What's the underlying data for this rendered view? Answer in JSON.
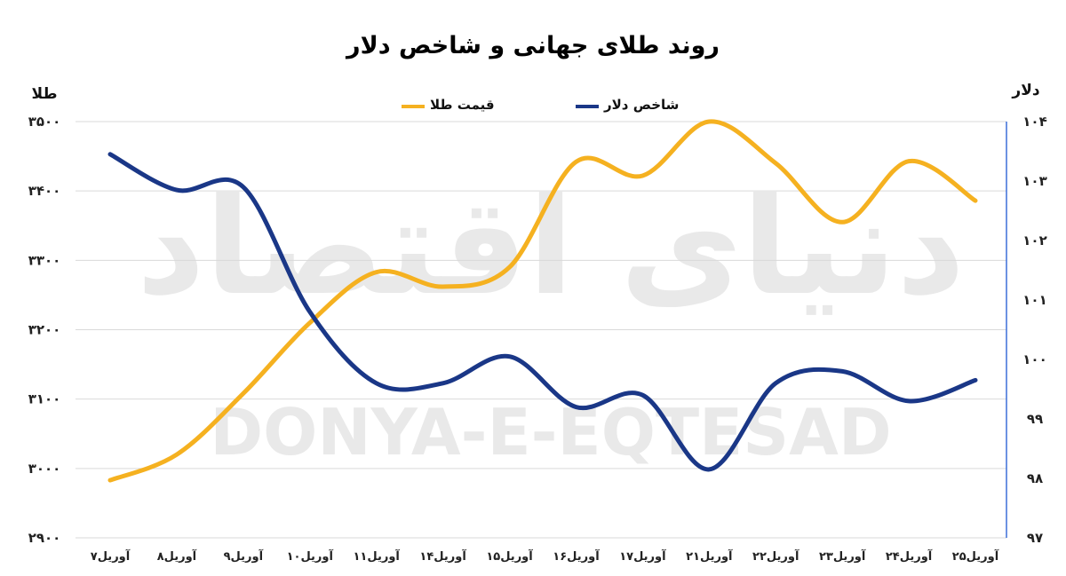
{
  "chart_data": {
    "type": "line",
    "title": "روند طلای جهانی و شاخص دلار",
    "ylabel_left": "طلا",
    "ylabel_right": "دلار",
    "categories": [
      "۷آوریل",
      "۸آوریل",
      "۹آوریل",
      "۱۰آوریل",
      "۱۱آوریل",
      "۱۴آوریل",
      "۱۵آوریل",
      "۱۶آوریل",
      "۱۷آوریل",
      "۲۱آوریل",
      "۲۲آوریل",
      "۲۳آوریل",
      "۲۴آوریل",
      "۲۵آوریل"
    ],
    "ylim_left": [
      2900,
      3500
    ],
    "ylim_right": [
      97,
      104
    ],
    "yticks_left": [
      "۲۹۰۰",
      "۳۰۰۰",
      "۳۱۰۰",
      "۳۲۰۰",
      "۳۳۰۰",
      "۳۴۰۰",
      "۳۵۰۰"
    ],
    "yticks_right": [
      "۹۷",
      "۹۸",
      "۹۹",
      "۱۰۰",
      "۱۰۱",
      "۱۰۲",
      "۱۰۳",
      "۱۰۴"
    ],
    "series": [
      {
        "name": "قیمت طلا",
        "axis": "left",
        "color": "#F5B120",
        "values": [
          2983,
          3020,
          3108,
          3210,
          3283,
          3262,
          3290,
          3442,
          3422,
          3500,
          3440,
          3355,
          3443,
          3386
        ]
      },
      {
        "name": "شاخص دلار",
        "axis": "right",
        "color": "#1A3787",
        "values": [
          103.45,
          102.85,
          102.9,
          100.8,
          99.6,
          99.6,
          100.05,
          99.2,
          99.4,
          98.15,
          99.6,
          99.8,
          99.3,
          99.65
        ]
      }
    ],
    "legend_position": "top-center",
    "grid": true
  },
  "watermark": {
    "fa": "دنیای اقتصاد",
    "en": "DONYA-E-EQTESAD"
  },
  "colors": {
    "gold": "#F5B120",
    "dollar": "#1A3787",
    "grid": "#d9d9d9",
    "right_axis": "#3b6fd8"
  }
}
